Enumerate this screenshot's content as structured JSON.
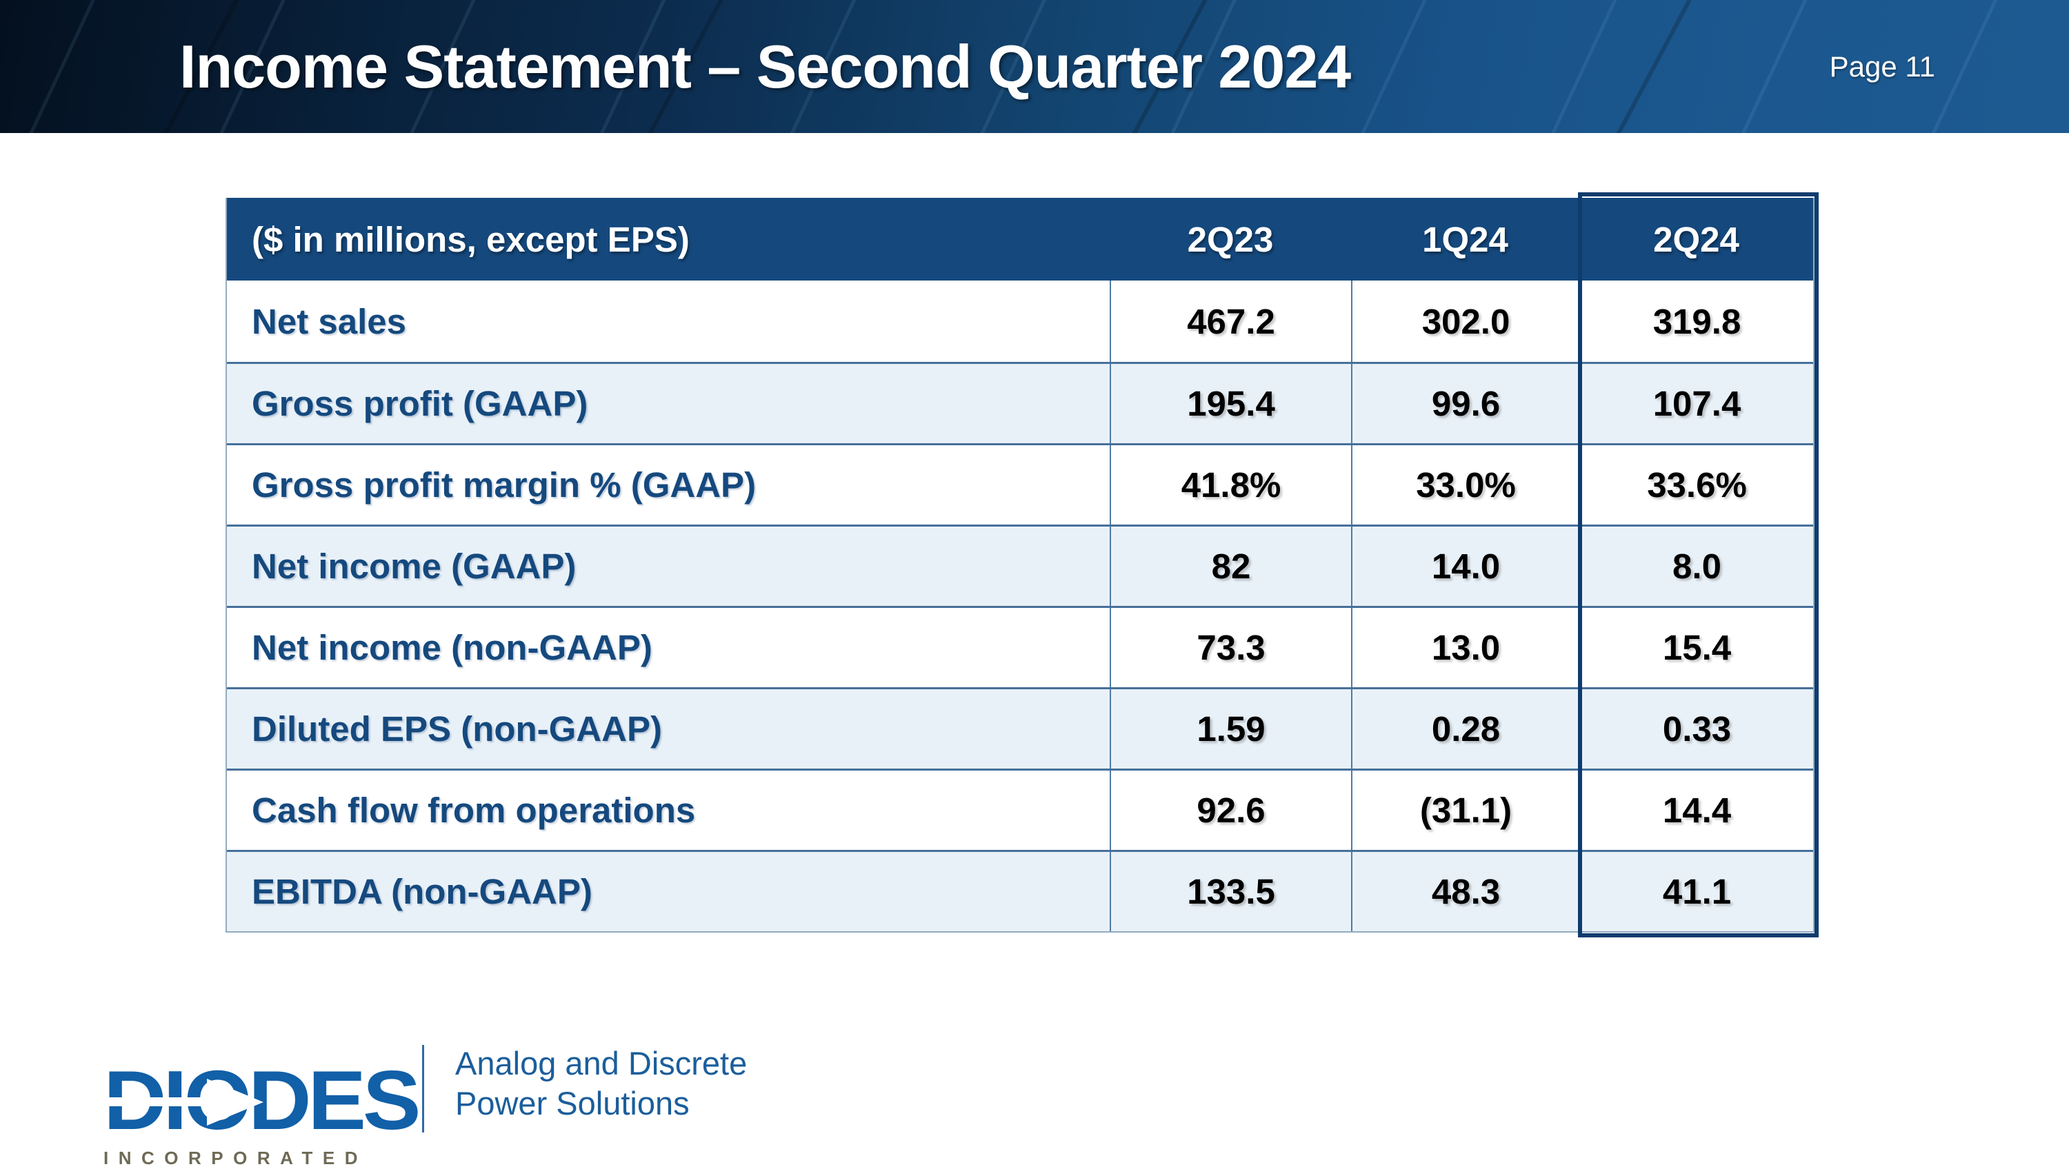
{
  "header": {
    "title": "Income Statement – Second Quarter 2024",
    "page_label": "Page 11"
  },
  "table": {
    "caption": "($ in millions, except EPS)",
    "columns": [
      "2Q23",
      "1Q24",
      "2Q24"
    ],
    "highlighted_column": "2Q24",
    "rows": [
      {
        "label": "Net sales",
        "values": [
          "467.2",
          "302.0",
          "319.8"
        ]
      },
      {
        "label": "Gross profit (GAAP)",
        "values": [
          "195.4",
          "99.6",
          "107.4"
        ]
      },
      {
        "label": "Gross profit margin % (GAAP)",
        "values": [
          "41.8%",
          "33.0%",
          "33.6%"
        ]
      },
      {
        "label": "Net income (GAAP)",
        "values": [
          "82",
          "14.0",
          "8.0"
        ]
      },
      {
        "label": "Net income (non-GAAP)",
        "values": [
          "73.3",
          "13.0",
          "15.4"
        ]
      },
      {
        "label": "Diluted EPS (non-GAAP)",
        "values": [
          "1.59",
          "0.28",
          "0.33"
        ]
      },
      {
        "label": "Cash flow from operations",
        "values": [
          "92.6",
          "(31.1)",
          "14.4"
        ]
      },
      {
        "label": "EBITDA (non-GAAP)",
        "values": [
          "133.5",
          "48.3",
          "41.1"
        ]
      }
    ]
  },
  "footer": {
    "logo_text": "DIODES",
    "logo_subtext": "INCORPORATED",
    "tagline_line1": "Analog and Discrete",
    "tagline_line2": "Power Solutions"
  },
  "colors": {
    "table_header_navy": "#15497e",
    "highlight_border_navy": "#0e3c6e",
    "alt_row_light_blue": "#e9f1f8",
    "grid_line_blue": "#4f7aa4",
    "label_navy": "#15497e",
    "logo_blue": "#1160a8",
    "incorporated_taupe": "#6e6a55",
    "tagline_blue": "#1b5e9b"
  }
}
